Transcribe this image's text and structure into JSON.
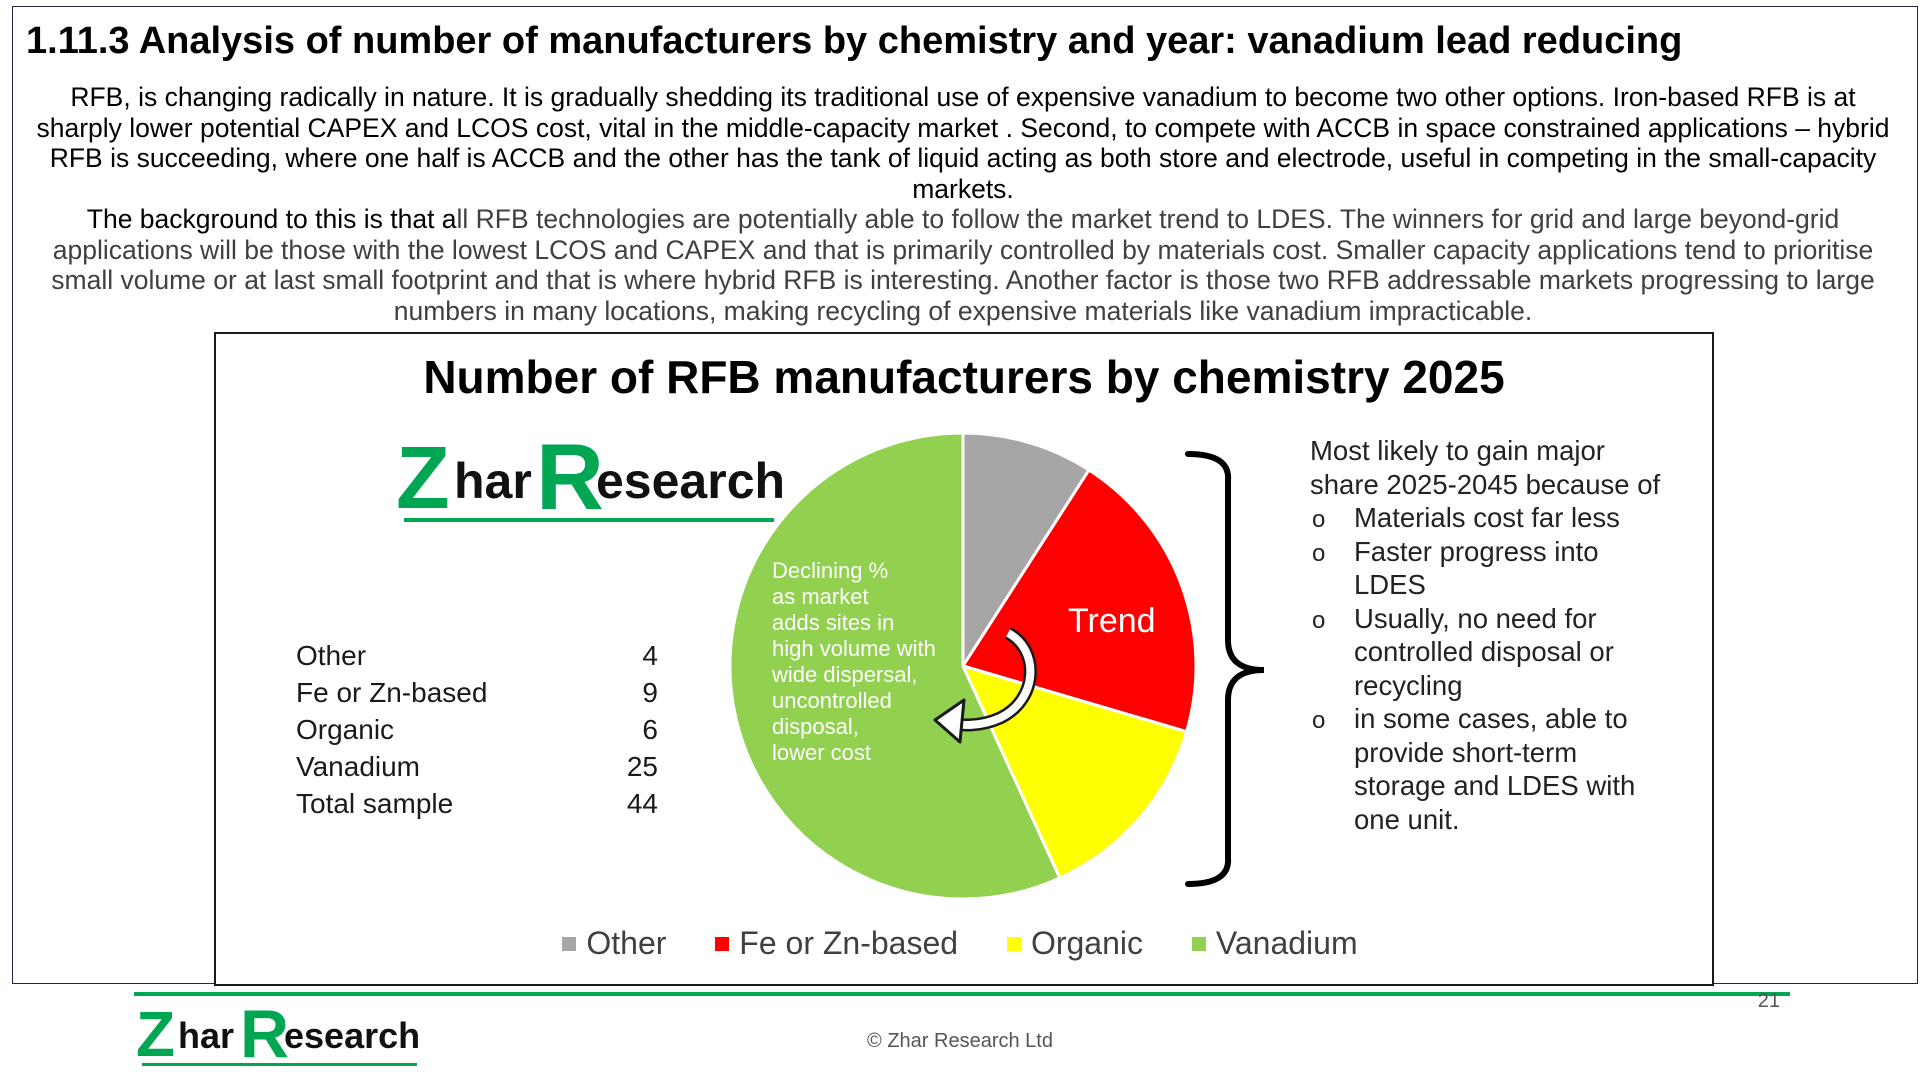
{
  "page": {
    "title": "1.11.3 Analysis of number of manufacturers by chemistry and year: vanadium lead reducing",
    "intro_p1": "RFB, is changing radically in nature. It is gradually shedding its traditional use of expensive vanadium to become two other options. Iron-based RFB is at sharply lower potential CAPEX and LCOS cost, vital in the middle-capacity market . Second, to compete with ACCB in space constrained applications – hybrid RFB is succeeding, where one half is ACCB and the other has the tank of liquid acting as both store and electrode, useful in competing in the small-capacity markets.",
    "intro_p2_lead": "The background to this is that a",
    "intro_p2_rest": "ll RFB technologies are potentially able to follow the market trend to LDES. The winners for grid and large beyond-grid applications will be those with the lowest LCOS and CAPEX and that is primarily controlled by materials cost. Smaller capacity applications tend to prioritise small volume or at last small footprint and that is where hybrid RFB is interesting. Another factor is those two RFB addressable markets progressing to large numbers in many locations, making recycling of expensive materials like vanadium impracticable."
  },
  "brand": {
    "z": "Z",
    "har": "har",
    "r": "R",
    "esearch": "esearch",
    "green": "#00a651"
  },
  "chart_data": {
    "type": "pie",
    "title": "Number of RFB manufacturers by chemistry 2025",
    "categories": [
      "Other",
      "Fe or Zn-based",
      "Organic",
      "Vanadium"
    ],
    "values": [
      4,
      9,
      6,
      25
    ],
    "colors": [
      "#a6a6a6",
      "#ff0000",
      "#ffff00",
      "#92d050"
    ],
    "legend_position": "bottom",
    "table": {
      "rows": [
        {
          "label": "Other",
          "value": "4"
        },
        {
          "label": "Fe or Zn-based",
          "value": "9"
        },
        {
          "label": "Organic",
          "value": "6"
        },
        {
          "label": "Vanadium",
          "value": "25"
        },
        {
          "label": "Total sample",
          "value": "44"
        }
      ]
    },
    "annotations": {
      "trend": "Trend",
      "declining": [
        "Declining %",
        "as market",
        "adds sites in",
        "high volume with",
        "wide dispersal,",
        "uncontrolled",
        "disposal,",
        "lower cost"
      ]
    }
  },
  "callout": {
    "heading": "Most likely to gain major share 2025-2045 because of",
    "bullets": [
      "Materials cost far less",
      "Faster progress into LDES",
      "Usually, no need for controlled disposal or recycling",
      "in some cases, able to provide short-term storage and LDES with one unit."
    ]
  },
  "footer": {
    "copyright": "© Zhar Research Ltd",
    "page_number": "21"
  }
}
